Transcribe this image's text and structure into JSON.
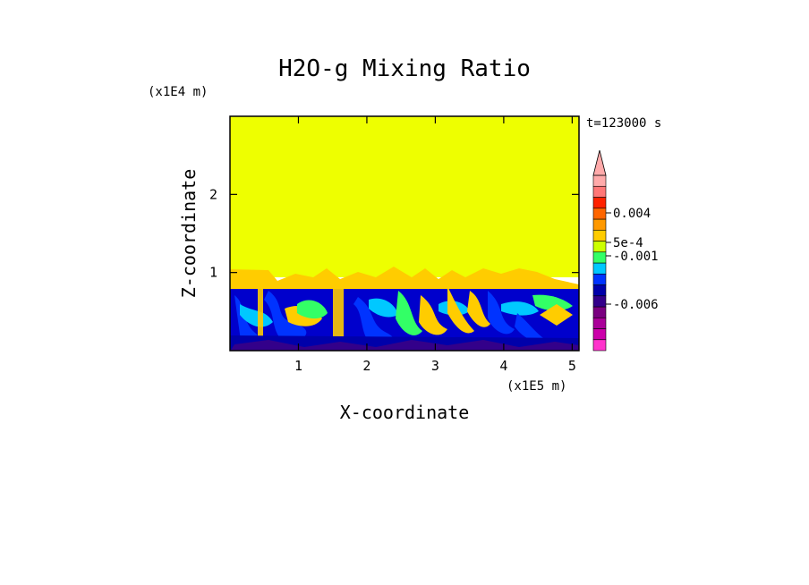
{
  "chart_data": {
    "type": "heatmap",
    "title": "H2O-g Mixing Ratio",
    "time_label": "t=123000 s",
    "xlabel": "X-coordinate",
    "ylabel": "Z-coordinate",
    "x_unit": "(x1E5 m)",
    "y_unit": "(x1E4 m)",
    "xlim": [
      0,
      5.1
    ],
    "ylim": [
      0,
      3.0
    ],
    "x_ticks": [
      "1",
      "2",
      "3",
      "4",
      "5"
    ],
    "x_tick_values": [
      1,
      2,
      3,
      4,
      5
    ],
    "y_ticks": [
      "1",
      "2"
    ],
    "y_tick_values": [
      1,
      2
    ],
    "colorbar": {
      "labels": [
        "0.004",
        "5e-4",
        "-0.001",
        "-0.006"
      ],
      "colors": [
        "#ff33cc",
        "#cc00aa",
        "#aa0099",
        "#7a0080",
        "#33008a",
        "#0000aa",
        "#0033ff",
        "#00c8ff",
        "#33ff66",
        "#ccff00",
        "#ffcc00",
        "#ff9900",
        "#ff6600",
        "#ff2200",
        "#ff7777",
        "#ffaaaa"
      ]
    },
    "regions": [
      {
        "name": "upper",
        "z_range": [
          1.0,
          3.0
        ],
        "color": "#eeff00"
      },
      {
        "name": "transition",
        "z_range": [
          0.8,
          1.0
        ],
        "color": "#ffcc00"
      },
      {
        "name": "lower",
        "z_range": [
          0.0,
          0.8
        ],
        "color": "#0000cc"
      }
    ]
  }
}
